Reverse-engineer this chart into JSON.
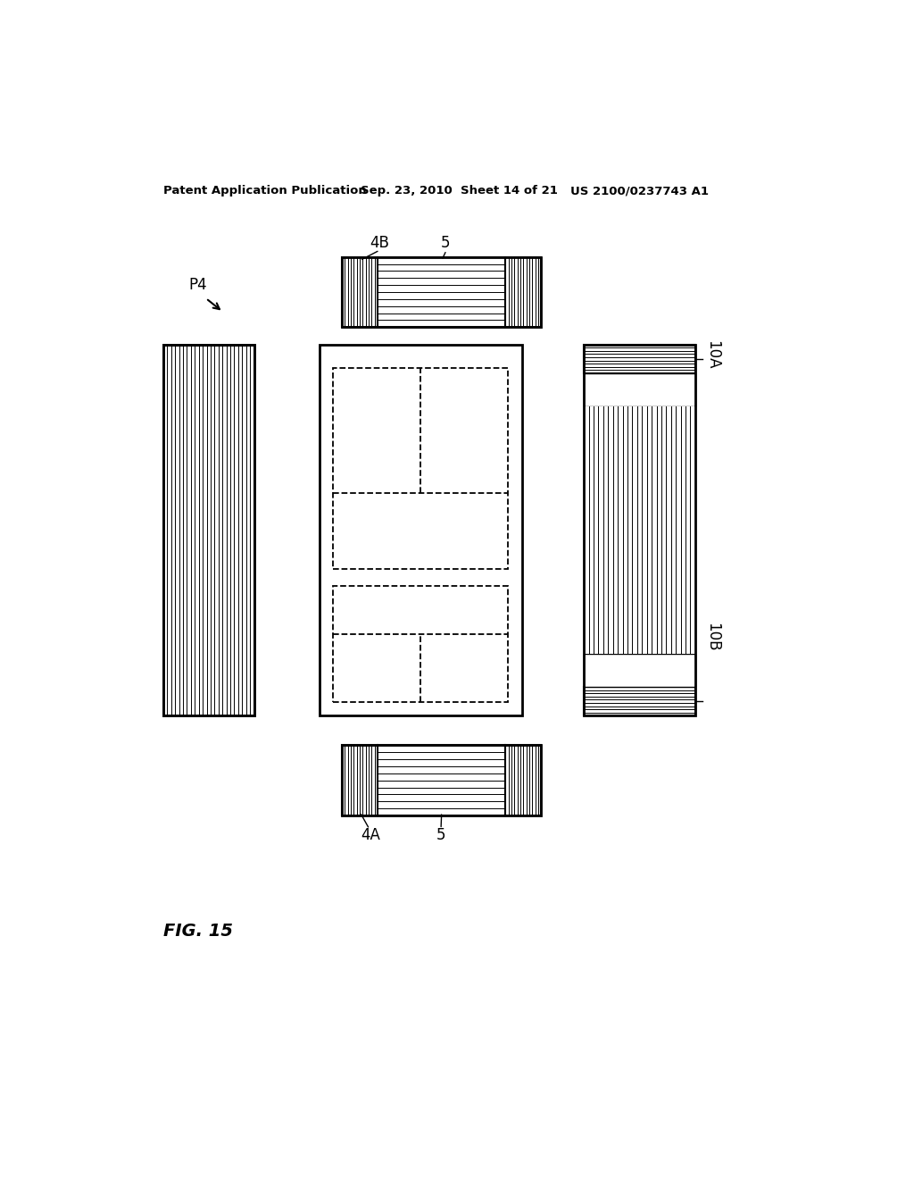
{
  "header_left": "Patent Application Publication",
  "header_mid": "Sep. 23, 2010  Sheet 14 of 21",
  "header_right": "US 2100/0237743 A1",
  "fig_label": "FIG. 15",
  "label_P4": "P4",
  "label_4B": "4B",
  "label_5_top": "5",
  "label_4A": "4A",
  "label_5_bot": "5",
  "label_10A": "10A",
  "label_10B": "10B",
  "bg_color": "#ffffff",
  "line_color": "#000000"
}
